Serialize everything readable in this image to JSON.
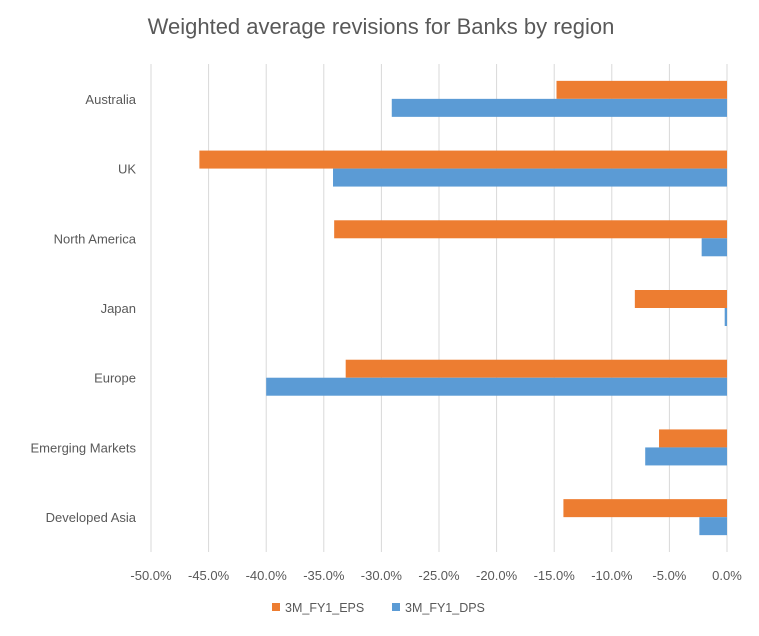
{
  "chart_data": {
    "type": "bar",
    "orientation": "horizontal",
    "title": "Weighted average revisions for Banks by region",
    "xlabel": "",
    "ylabel": "",
    "categories": [
      "Australia",
      "UK",
      "North America",
      "Japan",
      "Europe",
      "Emerging Markets",
      "Developed Asia"
    ],
    "series": [
      {
        "name": "3M_FY1_EPS",
        "color": "#ED7D31",
        "values": [
          -14.8,
          -45.8,
          -34.1,
          -8.0,
          -33.1,
          -5.9,
          -14.2
        ]
      },
      {
        "name": "3M_FY1_DPS",
        "color": "#5B9BD5",
        "values": [
          -29.1,
          -34.2,
          -2.2,
          -0.2,
          -40.0,
          -7.1,
          -2.4
        ]
      }
    ],
    "xlim": [
      -50,
      0
    ],
    "xticks": [
      -50,
      -45,
      -40,
      -35,
      -30,
      -25,
      -20,
      -15,
      -10,
      -5,
      0
    ],
    "xtick_labels": [
      "-50.0%",
      "-45.0%",
      "-40.0%",
      "-35.0%",
      "-30.0%",
      "-25.0%",
      "-20.0%",
      "-15.0%",
      "-10.0%",
      "-5.0%",
      "0.0%"
    ],
    "grid": true,
    "legend_position": "bottom"
  }
}
